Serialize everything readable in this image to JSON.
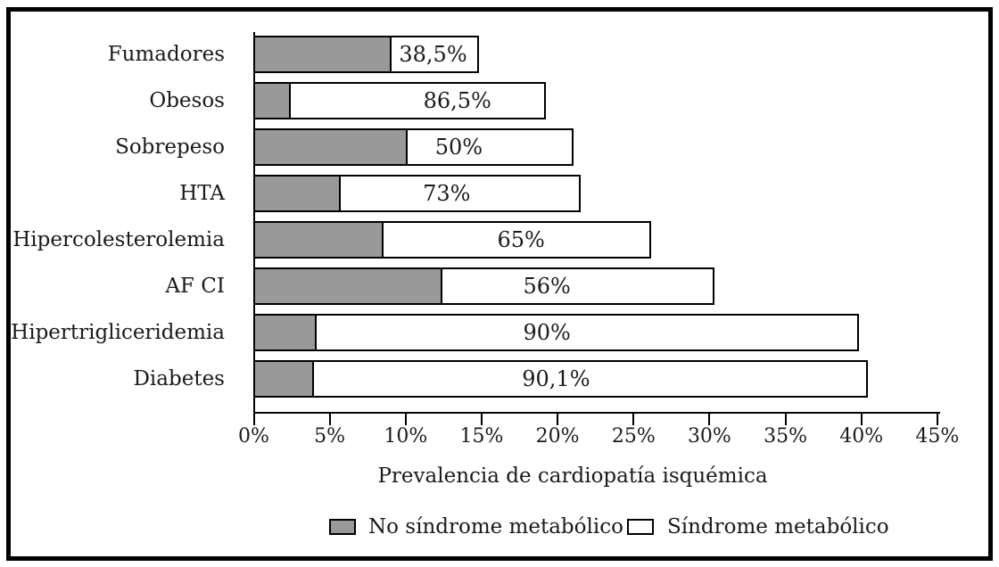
{
  "chart_data": {
    "type": "bar",
    "variant": "horizontal-stacked",
    "title": "",
    "xlabel": "Prevalencia de cardiopatía isquémica",
    "ylabel": "",
    "xlim": [
      0,
      45
    ],
    "grid": false,
    "legend_position": "bottom",
    "categories": [
      "Fumadores",
      "Obesos",
      "Sobrepeso",
      "HTA",
      "Hipercolesterolemia",
      "AF CI",
      "Hipertrigliceridemia",
      "Diabetes"
    ],
    "series": [
      {
        "name": "No síndrome metabólico",
        "color": "#999999",
        "values": [
          9.1,
          2.5,
          10.2,
          5.8,
          8.6,
          12.5,
          4.2,
          4.0
        ]
      },
      {
        "name": "Síndrome metabólico",
        "color": "#ffffff",
        "values": [
          5.8,
          16.8,
          10.9,
          15.8,
          17.6,
          17.9,
          35.7,
          36.5
        ]
      }
    ],
    "totals_pct": [
      14.9,
      19.3,
      21.1,
      21.6,
      26.2,
      30.4,
      39.9,
      40.5
    ],
    "bar_labels": [
      "38,5%",
      "86,5%",
      "50%",
      "73%",
      "65%",
      "56%",
      "90%",
      "90,1%"
    ],
    "bar_label_x_pct": [
      11.8,
      13.4,
      13.5,
      12.7,
      17.6,
      19.3,
      19.3,
      19.9
    ],
    "x_tick_values": [
      0,
      5,
      10,
      15,
      20,
      25,
      30,
      35,
      40,
      45
    ],
    "x_tick_labels": [
      "0%",
      "5%",
      "10%",
      "15%",
      "20%",
      "25%",
      "30%",
      "35%",
      "40%",
      "45%"
    ]
  },
  "colors": {
    "bar_gray": "#999999",
    "bar_white": "#ffffff",
    "outline": "#000000",
    "background": "#ffffff"
  }
}
